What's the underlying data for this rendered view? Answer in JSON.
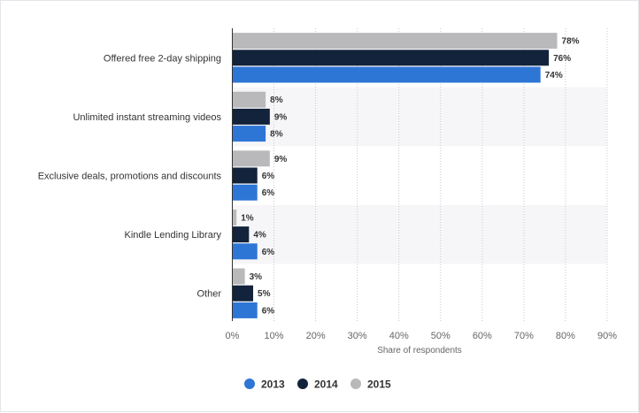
{
  "chart_data": {
    "type": "bar",
    "orientation": "horizontal",
    "categories": [
      "Offered free 2-day shipping",
      "Unlimited instant streaming videos",
      "Exclusive deals, promotions and discounts",
      "Kindle Lending Library",
      "Other"
    ],
    "series": [
      {
        "name": "2015",
        "color": "#b9b9bc",
        "values": [
          78,
          8,
          9,
          1,
          3
        ]
      },
      {
        "name": "2014",
        "color": "#13233b",
        "values": [
          76,
          9,
          6,
          4,
          5
        ]
      },
      {
        "name": "2013",
        "color": "#2e76d6",
        "values": [
          74,
          8,
          6,
          6,
          6
        ]
      }
    ],
    "value_suffix": "%",
    "xlabel": "Share of respondents",
    "xlim": [
      0,
      90
    ],
    "xticks": [
      "0%",
      "10%",
      "20%",
      "30%",
      "40%",
      "50%",
      "60%",
      "70%",
      "80%",
      "90%"
    ],
    "grid": "vertical dotted",
    "legend": {
      "position": "bottom-center",
      "items": [
        {
          "name": "2013",
          "color": "#2e76d6"
        },
        {
          "name": "2014",
          "color": "#13233b"
        },
        {
          "name": "2015",
          "color": "#b9b9bc"
        }
      ]
    }
  }
}
